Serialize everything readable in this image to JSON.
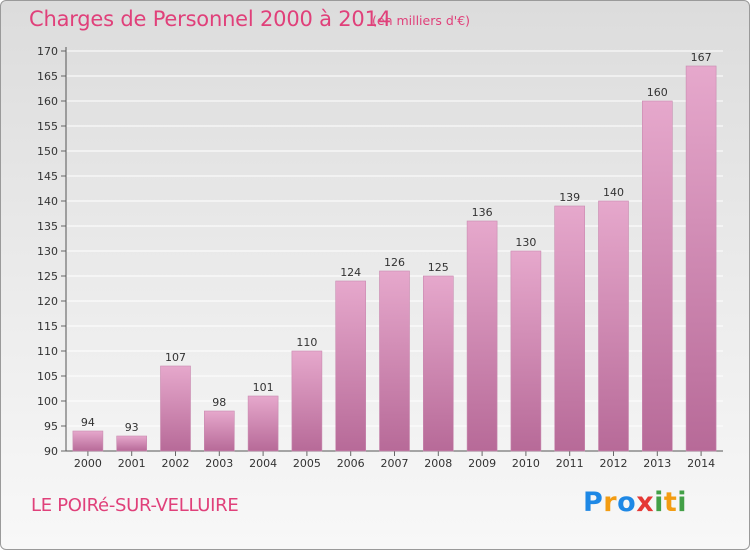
{
  "title": "Charges de Personnel 2000 à 2014",
  "subtitle": "(en milliers d'€)",
  "town": "LE POIRé-SUR-VELLUIRE",
  "logo": {
    "letters": [
      "P",
      "r",
      "o",
      "x",
      "i",
      "t",
      "i"
    ],
    "colors": [
      "#1e88e5",
      "#f39c12",
      "#1e88e5",
      "#e53935",
      "#43a047",
      "#f39c12",
      "#43a047"
    ]
  },
  "colors": {
    "accent": "#e0407a",
    "bar_light": "#e6a8cc",
    "bar_dark": "#b76a98"
  },
  "chart_data": {
    "type": "bar",
    "categories": [
      "2000",
      "2001",
      "2002",
      "2003",
      "2004",
      "2005",
      "2006",
      "2007",
      "2008",
      "2009",
      "2010",
      "2011",
      "2012",
      "2013",
      "2014"
    ],
    "values": [
      94,
      93,
      107,
      98,
      101,
      110,
      124,
      126,
      125,
      136,
      130,
      139,
      140,
      160,
      167
    ],
    "title": "Charges de Personnel 2000 à 2014",
    "subtitle": "(en milliers d'€)",
    "ylim": [
      90,
      170
    ],
    "yticks": [
      90,
      95,
      100,
      105,
      110,
      115,
      120,
      125,
      130,
      135,
      140,
      145,
      150,
      155,
      160,
      165,
      170
    ],
    "grid": true
  }
}
